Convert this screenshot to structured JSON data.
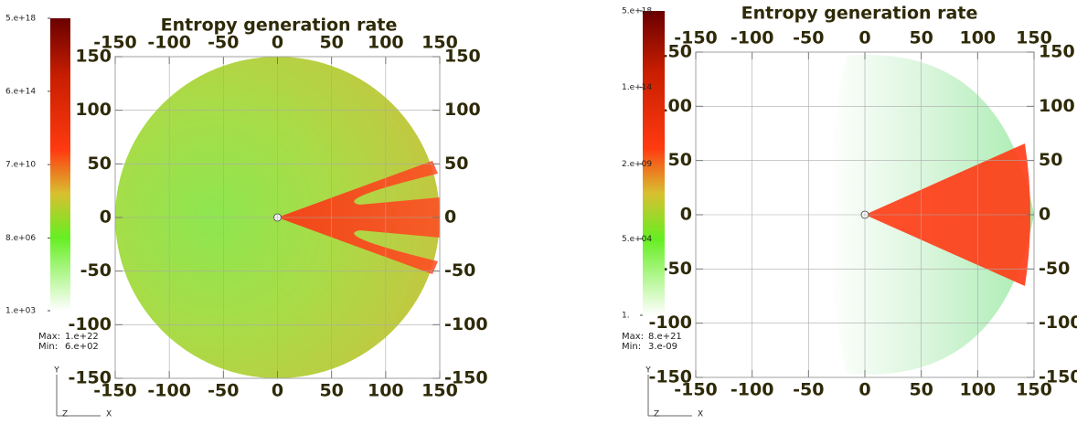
{
  "chart_data": [
    {
      "type": "pseudocolor",
      "title": "Entropy generation rate",
      "xlim": [
        -150,
        150
      ],
      "ylim": [
        -150,
        150
      ],
      "xticks": [
        -150,
        -100,
        -50,
        0,
        50,
        100,
        150
      ],
      "yticks": [
        -150,
        -100,
        -50,
        0,
        50,
        100,
        150
      ],
      "grid": true,
      "colorbar_scale": "log",
      "clim": [
        1000,
        5e+18
      ],
      "colorbar_ticks": [
        {
          "value": 5e+18,
          "label": "5.e+18"
        },
        {
          "value": 600000000000000.0,
          "label": "6.e+14"
        },
        {
          "value": 70000000000.0,
          "label": "7.e+10"
        },
        {
          "value": 8000000.0,
          "label": "8.e+06"
        },
        {
          "value": 1000,
          "label": "1.e+03"
        }
      ],
      "max_label": "Max:",
      "max": {
        "value": 1e+22,
        "label": "1.e+22"
      },
      "min_label": "Min:",
      "min": {
        "value": 600,
        "label": "6.e+02"
      },
      "axis_labels": {
        "x": "X",
        "y": "Y",
        "z": "Z"
      }
    },
    {
      "type": "pseudocolor",
      "title": "Entropy generation rate",
      "xlim": [
        -150,
        150
      ],
      "ylim": [
        -150,
        150
      ],
      "xticks": [
        -150,
        -100,
        -50,
        0,
        50,
        100,
        150
      ],
      "yticks": [
        -150,
        -100,
        -50,
        0,
        50,
        100,
        150
      ],
      "grid": true,
      "colorbar_scale": "log",
      "clim": [
        1,
        5e+18
      ],
      "colorbar_ticks": [
        {
          "value": 5e+18,
          "label": "5.e+18"
        },
        {
          "value": 100000000000000.0,
          "label": "1.e+14"
        },
        {
          "value": 2000000000.0,
          "label": "2.e+09"
        },
        {
          "value": 50000.0,
          "label": "5.e+04"
        },
        {
          "value": 1,
          "label": "1."
        }
      ],
      "max_label": "Max:",
      "max": {
        "value": 8e+21,
        "label": "8.e+21"
      },
      "min_label": "Min:",
      "min": {
        "value": 3e-09,
        "label": "3.e-09"
      },
      "axis_labels": {
        "x": "X",
        "y": "Y",
        "z": "Z"
      }
    }
  ]
}
